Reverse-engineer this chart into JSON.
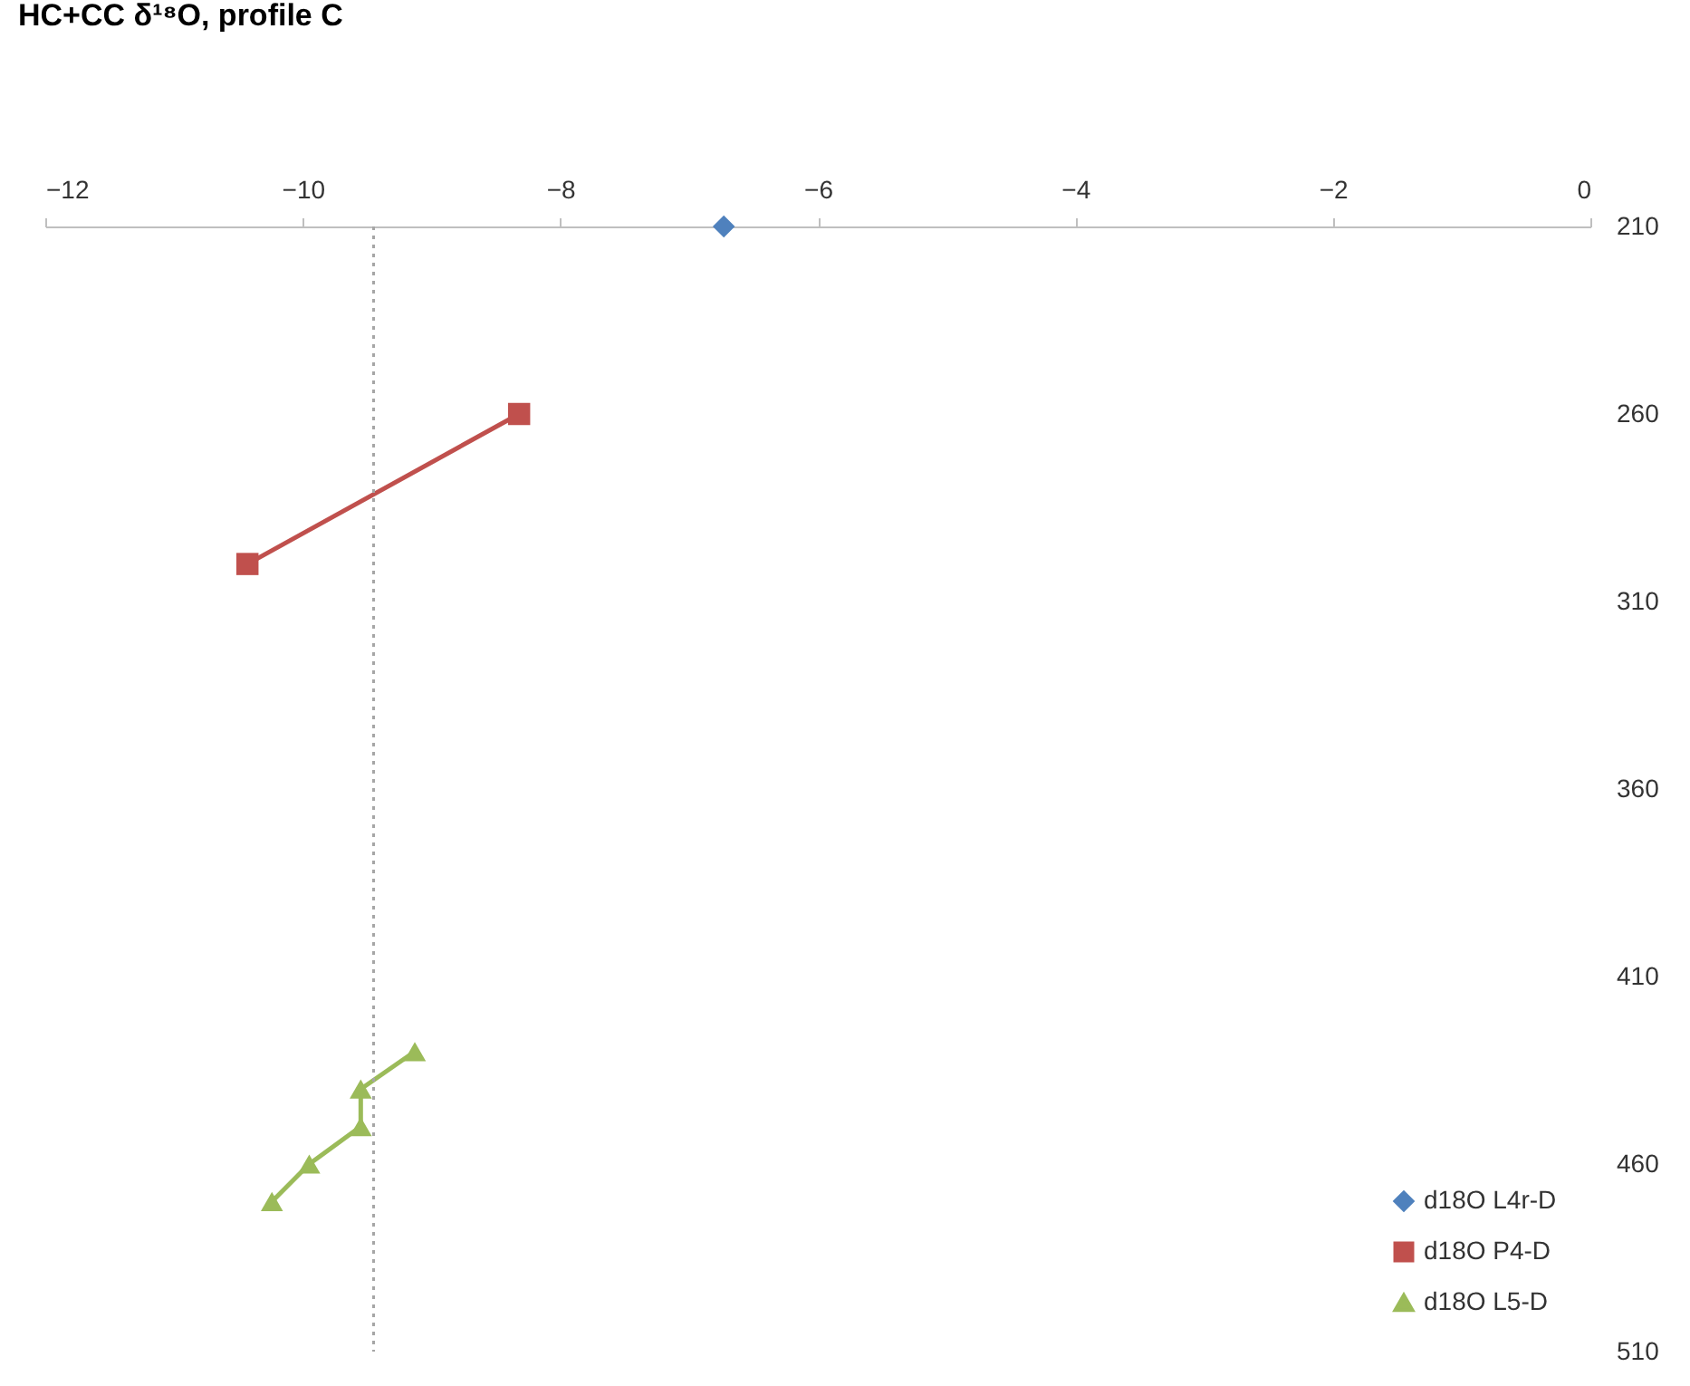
{
  "chart_data": {
    "type": "line",
    "title": "HC+CC δ¹⁸O, profile C",
    "xlim": [
      -12,
      0
    ],
    "xticks": [
      -12,
      -10,
      -8,
      -6,
      -4,
      -2,
      0
    ],
    "ylim": [
      510,
      210
    ],
    "yticks": [
      210,
      260,
      310,
      360,
      410,
      460,
      510
    ],
    "grid": false,
    "legend": "bottom right",
    "series": [
      {
        "name": "d18O L4r-D",
        "color": "#4f81bd",
        "marker": "diamond",
        "x": [
          -6.73
        ],
        "values": [
          210
        ]
      },
      {
        "name": "d18O P4-D",
        "color": "#c0504d",
        "marker": "square",
        "x": [
          -8.32,
          -10.43
        ],
        "values": [
          260,
          300
        ]
      },
      {
        "name": "d18O L5-D",
        "color": "#9bbb59",
        "marker": "triangle",
        "x": [
          -9.13,
          -9.55,
          -9.55,
          -9.95,
          -10.24
        ],
        "values": [
          430,
          440,
          450,
          460,
          470
        ]
      }
    ],
    "ref_lines": [
      {
        "axis": "x",
        "value": -9.45,
        "color": "#a6a6a6",
        "line_style": "dotted"
      }
    ]
  }
}
